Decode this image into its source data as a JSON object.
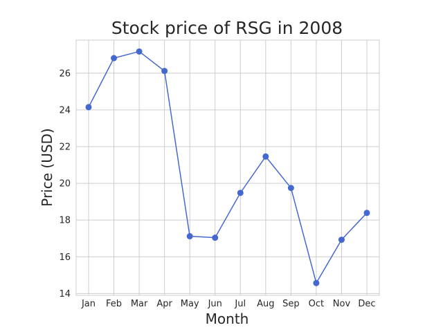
{
  "chart_data": {
    "type": "line",
    "title": "Stock price of RSG in 2008",
    "xlabel": "Month",
    "ylabel": "Price (USD)",
    "categories": [
      "Jan",
      "Feb",
      "Mar",
      "Apr",
      "May",
      "Jun",
      "Jul",
      "Aug",
      "Sep",
      "Oct",
      "Nov",
      "Dec"
    ],
    "values": [
      24.15,
      26.82,
      27.18,
      26.12,
      17.12,
      17.04,
      19.48,
      21.46,
      19.75,
      14.57,
      16.93,
      18.39
    ],
    "ylim": [
      13.9,
      27.8
    ],
    "yticks": [
      14,
      16,
      18,
      20,
      22,
      24,
      26
    ],
    "grid": true,
    "legend": "none",
    "colors": {
      "line": "#4568cf",
      "marker": "#4568cf",
      "grid": "#cccccc",
      "frame": "#cccccc"
    }
  }
}
